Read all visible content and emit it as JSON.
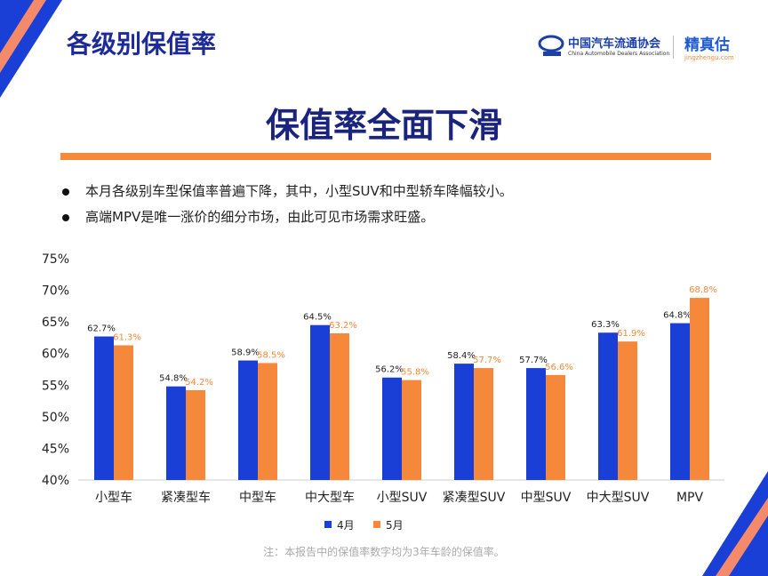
{
  "header": {
    "title": "各级别保值率",
    "logo_cada_cn": "中国汽车流通协会",
    "logo_cada_en": "China Automobile Dealers Association",
    "logo_jzg_cn": "精真估",
    "logo_jzg_en": "jingzhengu.com"
  },
  "headline": "保值率全面下滑",
  "bullets": [
    "本月各级别车型保值率普遍下降，其中，小型SUV和中型轿车降幅较小。",
    "高端MPV是唯一涨价的细分市场，由此可见市场需求旺盛。"
  ],
  "note": "注：本报告中的保值率数字均为3年车龄的保值率。",
  "colors": {
    "april": "#1a3fd6",
    "may": "#f5883a"
  },
  "chart_data": {
    "type": "bar",
    "categories": [
      "小型车",
      "紧凑型车",
      "中型车",
      "中大型车",
      "小型SUV",
      "紧凑型SUV",
      "中型SUV",
      "中大型SUV",
      "MPV"
    ],
    "series": [
      {
        "name": "4月",
        "values": [
          62.7,
          54.8,
          58.9,
          64.5,
          56.2,
          58.4,
          57.7,
          63.3,
          64.8
        ]
      },
      {
        "name": "5月",
        "values": [
          61.3,
          54.2,
          58.5,
          63.2,
          55.8,
          57.7,
          56.6,
          61.9,
          68.8
        ]
      }
    ],
    "ylim": [
      40,
      75
    ],
    "yticks": [
      "40%",
      "45%",
      "50%",
      "55%",
      "60%",
      "65%",
      "70%",
      "75%"
    ],
    "legend_position": "bottom",
    "grid": false
  }
}
